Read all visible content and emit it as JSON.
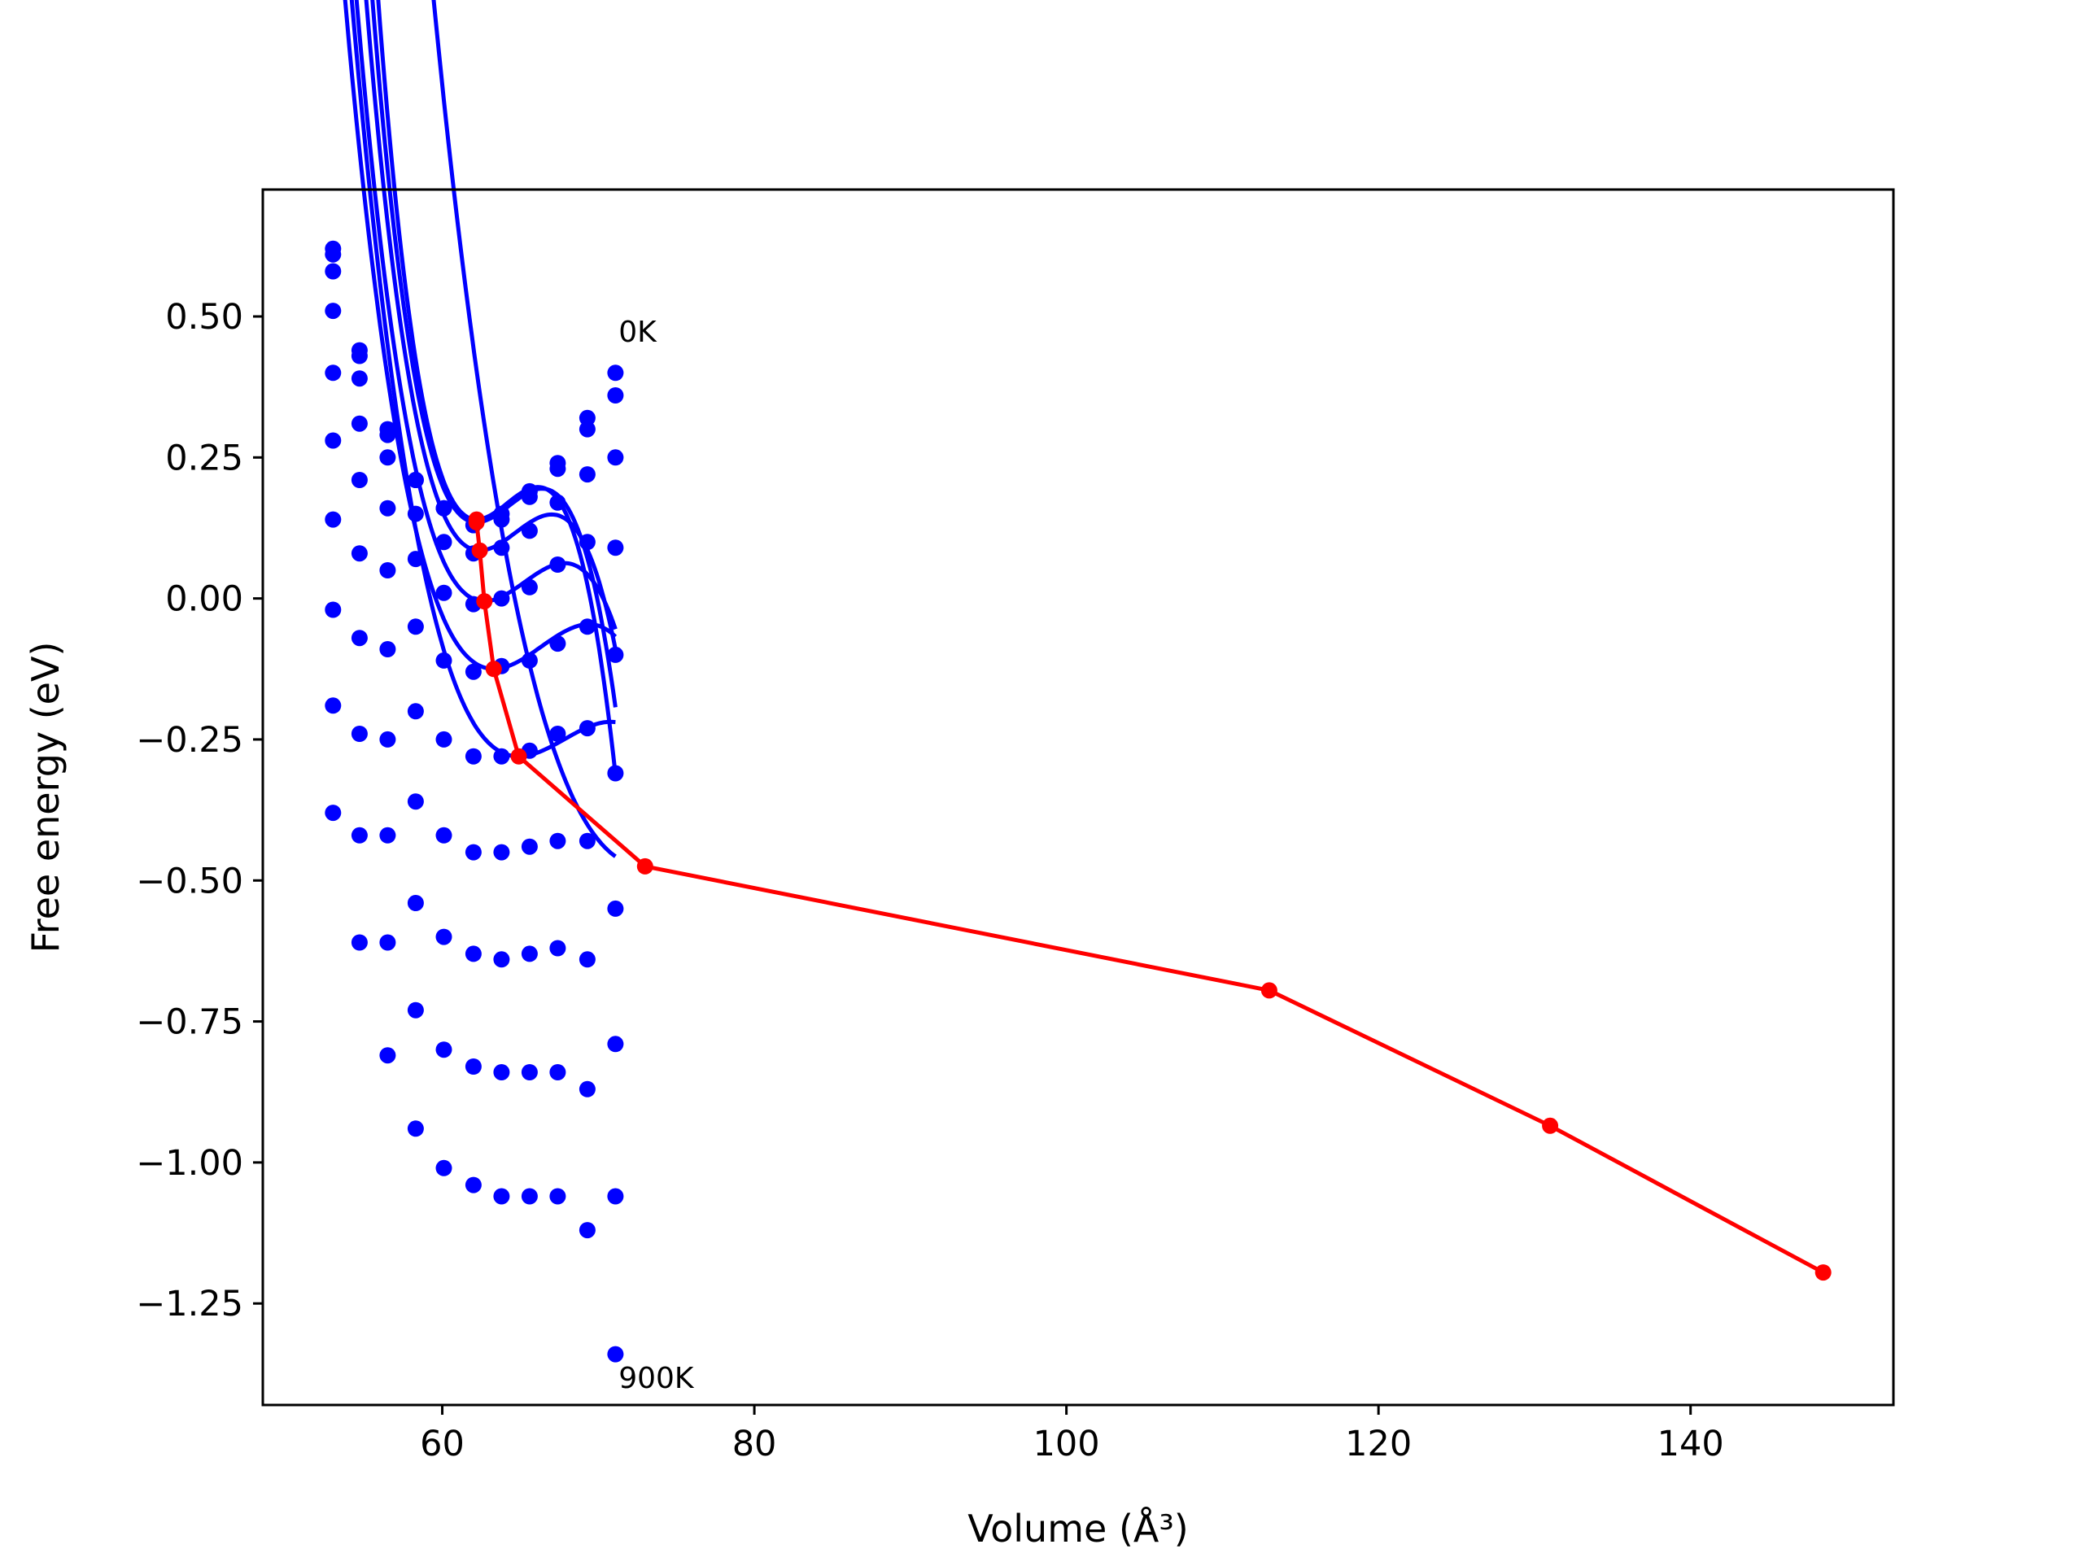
{
  "chart_data": {
    "type": "scatter",
    "title": "",
    "xlabel": "Volume (Å³)",
    "ylabel": "Free energy (eV)",
    "xlim": [
      48.5,
      153
    ],
    "ylim": [
      -1.43,
      0.725
    ],
    "xticks": [
      60,
      80,
      100,
      120,
      140
    ],
    "xtick_labels": [
      "60",
      "80",
      "100",
      "120",
      "140"
    ],
    "yticks": [
      0.5,
      0.25,
      0.0,
      -0.25,
      -0.5,
      -0.75,
      -1.0,
      -1.25
    ],
    "ytick_labels": [
      "0.50",
      "0.25",
      "0.00",
      "−0.25",
      "−0.50",
      "−0.75",
      "−1.00",
      "−1.25"
    ],
    "grid": false,
    "annotations": [
      {
        "text": "0K",
        "x": 71.3,
        "y": 0.455
      },
      {
        "text": "900K",
        "x": 71.3,
        "y": -1.4
      }
    ],
    "x": [
      53,
      54.7,
      56.5,
      58.3,
      60.1,
      62,
      63.8,
      65.6,
      67.4,
      69.3,
      71.1
    ],
    "series": [
      {
        "color": "#0000ff",
        "values": [
          0.62,
          0.43,
          0.29,
          0.21,
          0.16,
          0.13,
          0.15,
          0.19,
          0.24,
          0.32,
          0.4
        ]
      },
      {
        "color": "#0000ff",
        "values": [
          0.61,
          0.44,
          0.3,
          0.21,
          0.16,
          0.13,
          0.14,
          0.18,
          0.23,
          0.3,
          0.36
        ]
      },
      {
        "color": "#0000ff",
        "values": [
          0.58,
          0.39,
          0.25,
          0.15,
          0.1,
          0.08,
          0.09,
          0.12,
          0.17,
          0.22,
          0.25
        ]
      },
      {
        "color": "#0000ff",
        "values": [
          0.51,
          0.31,
          0.16,
          0.07,
          0.01,
          -0.01,
          0.0,
          0.02,
          0.06,
          0.1,
          0.09
        ]
      },
      {
        "color": "#0000ff",
        "values": [
          0.4,
          0.21,
          0.05,
          -0.05,
          -0.11,
          -0.13,
          -0.12,
          -0.11,
          -0.08,
          -0.05,
          -0.1
        ]
      },
      {
        "color": "#0000ff",
        "values": [
          0.28,
          0.08,
          -0.09,
          -0.2,
          -0.25,
          -0.28,
          -0.28,
          -0.27,
          -0.24,
          -0.23,
          -0.31
        ]
      },
      {
        "color": "#0000ff",
        "values": [
          0.14,
          -0.07,
          -0.25,
          -0.36,
          -0.42,
          -0.45,
          -0.45,
          -0.44,
          -0.43,
          -0.43,
          -0.55
        ]
      },
      {
        "color": "#0000ff",
        "values": [
          -0.02,
          -0.24,
          -0.42,
          -0.54,
          -0.6,
          -0.63,
          -0.64,
          -0.63,
          -0.62,
          -0.64,
          -0.79
        ]
      },
      {
        "color": "#0000ff",
        "values": [
          -0.19,
          -0.42,
          -0.61,
          -0.73,
          -0.8,
          -0.83,
          -0.84,
          -0.84,
          -0.84,
          -0.87,
          -1.06
        ]
      },
      {
        "color": "#0000ff",
        "values": [
          -0.38,
          -0.61,
          -0.81,
          -0.94,
          -1.01,
          -1.04,
          -1.06,
          -1.06,
          -1.06,
          -1.12,
          -1.34
        ]
      }
    ],
    "fit_curves": [
      {
        "color": "#0000ff",
        "v0": 62.2,
        "e0": 0.14,
        "a": 0.0112,
        "b": -0.0019
      },
      {
        "color": "#0000ff",
        "v0": 62.2,
        "e0": 0.135,
        "a": 0.0101,
        "b": -0.0016
      },
      {
        "color": "#0000ff",
        "v0": 62.4,
        "e0": 0.085,
        "a": 0.009,
        "b": -0.0013
      },
      {
        "color": "#0000ff",
        "v0": 62.7,
        "e0": -0.005,
        "a": 0.0077,
        "b": -0.001
      },
      {
        "color": "#0000ff",
        "v0": 63.3,
        "e0": -0.125,
        "a": 0.0064,
        "b": -0.0007
      },
      {
        "color": "#0000ff",
        "v0": 64.9,
        "e0": -0.28,
        "a": 0.0053,
        "b": -0.0006
      },
      {
        "color": "#0000ff",
        "v0": 73.0,
        "e0": -0.475,
        "a": 0.0043,
        "b": -0.0003
      },
      {
        "color": "#0000ff",
        "v0": 113.0,
        "e0": -0.695,
        "a": 0.0035,
        "b": -9e-05
      },
      {
        "color": "#0000ff",
        "v0": 131.0,
        "e0": -0.935,
        "a": 0.0028,
        "b": -6e-05
      },
      {
        "color": "#0000ff",
        "v0": 148.5,
        "e0": -1.195,
        "a": 0.0023,
        "b": -4e-05
      }
    ],
    "fit_x_range": [
      53,
      71.1
    ],
    "minimum_path": {
      "color": "#ff0000",
      "x": [
        62.2,
        62.2,
        62.4,
        62.7,
        63.3,
        64.9,
        73.0,
        113.0,
        131.0,
        148.5
      ],
      "y": [
        0.14,
        0.135,
        0.085,
        -0.005,
        -0.125,
        -0.28,
        -0.475,
        -0.695,
        -0.935,
        -1.195
      ]
    }
  }
}
